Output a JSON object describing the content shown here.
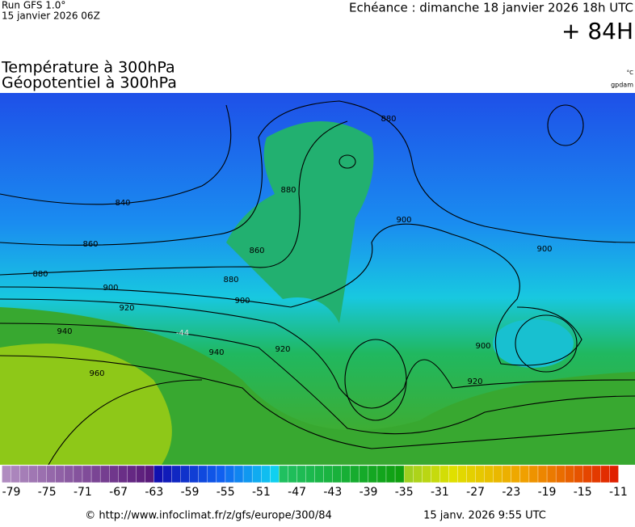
{
  "header": {
    "run": "Run GFS 1.0°",
    "run_date": "15 janvier 2026 06Z",
    "forecast": "Echéance : dimanche 18 janvier 2026 18h UTC",
    "lead": "+ 84H"
  },
  "titles": [
    "Température à 300hPa",
    "Géopotentiel à 300hPa"
  ],
  "units": {
    "temperature": "°C",
    "geopotential": "gpdam"
  },
  "contour_labels": [
    "840",
    "860",
    "880",
    "900",
    "920",
    "940",
    "960",
    "860",
    "880",
    "900",
    "880",
    "880",
    "900",
    "900",
    "920",
    "920",
    "940",
    "900",
    "-44"
  ],
  "colorbar": {
    "labels": [
      "-79",
      "-75",
      "-71",
      "-67",
      "-63",
      "-59",
      "-55",
      "-51",
      "-47",
      "-43",
      "-39",
      "-35",
      "-31",
      "-27",
      "-23",
      "-19",
      "-15",
      "-11"
    ]
  },
  "footer": {
    "source": "© http://www.infoclimat.fr/z/gfs/europe/300/84",
    "generated": "15 janv. 2026  9:55 UTC"
  }
}
